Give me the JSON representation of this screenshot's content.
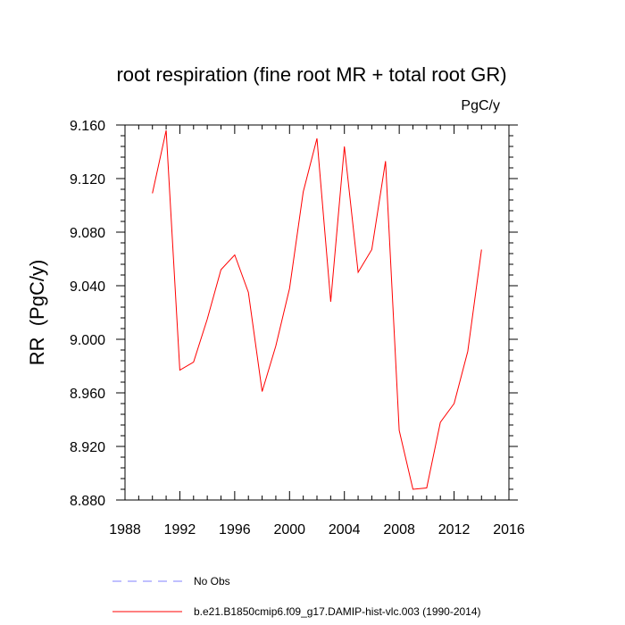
{
  "chart_data": {
    "type": "line",
    "title": "root respiration (fine root MR + total root GR)",
    "units": "PgC/y",
    "xlabel": "",
    "ylabel": "RR  (PgC/y)",
    "xlim": [
      1988,
      2016
    ],
    "ylim": [
      8.88,
      9.16
    ],
    "xticks": [
      1988,
      1992,
      1996,
      2000,
      2004,
      2008,
      2012,
      2016
    ],
    "xtick_labels": [
      "1988",
      "1992",
      "1996",
      "2000",
      "2004",
      "2008",
      "2012",
      "2016"
    ],
    "yticks": [
      8.88,
      8.92,
      8.96,
      9.0,
      9.04,
      9.08,
      9.12,
      9.16
    ],
    "ytick_labels": [
      "8.880",
      "8.920",
      "8.960",
      "9.000",
      "9.040",
      "9.080",
      "9.120",
      "9.160"
    ],
    "grid": false,
    "series": [
      {
        "name": "b.e21.B1850cmip6.f09_g17.DAMIP-hist-vlc.003 (1990-2014)",
        "color": "#ff0000",
        "x": [
          1990,
          1991,
          1992,
          1993,
          1994,
          1995,
          1996,
          1997,
          1998,
          1999,
          2000,
          2001,
          2002,
          2003,
          2004,
          2005,
          2006,
          2007,
          2008,
          2009,
          2010,
          2011,
          2012,
          2013,
          2014
        ],
        "y": [
          9.109,
          9.156,
          8.977,
          8.983,
          9.015,
          9.052,
          9.063,
          9.035,
          8.961,
          8.995,
          9.038,
          9.11,
          9.15,
          9.028,
          9.144,
          9.05,
          9.067,
          9.133,
          8.932,
          8.888,
          8.889,
          8.938,
          8.952,
          8.991,
          9.067
        ]
      }
    ],
    "legend": {
      "placement": "bottom",
      "entries": [
        {
          "label": "No Obs",
          "color": "#8080ff",
          "style": "dashed"
        },
        {
          "label": "b.e21.B1850cmip6.f09_g17.DAMIP-hist-vlc.003 (1990-2014)",
          "color": "#ff0000",
          "style": "solid"
        }
      ]
    }
  }
}
